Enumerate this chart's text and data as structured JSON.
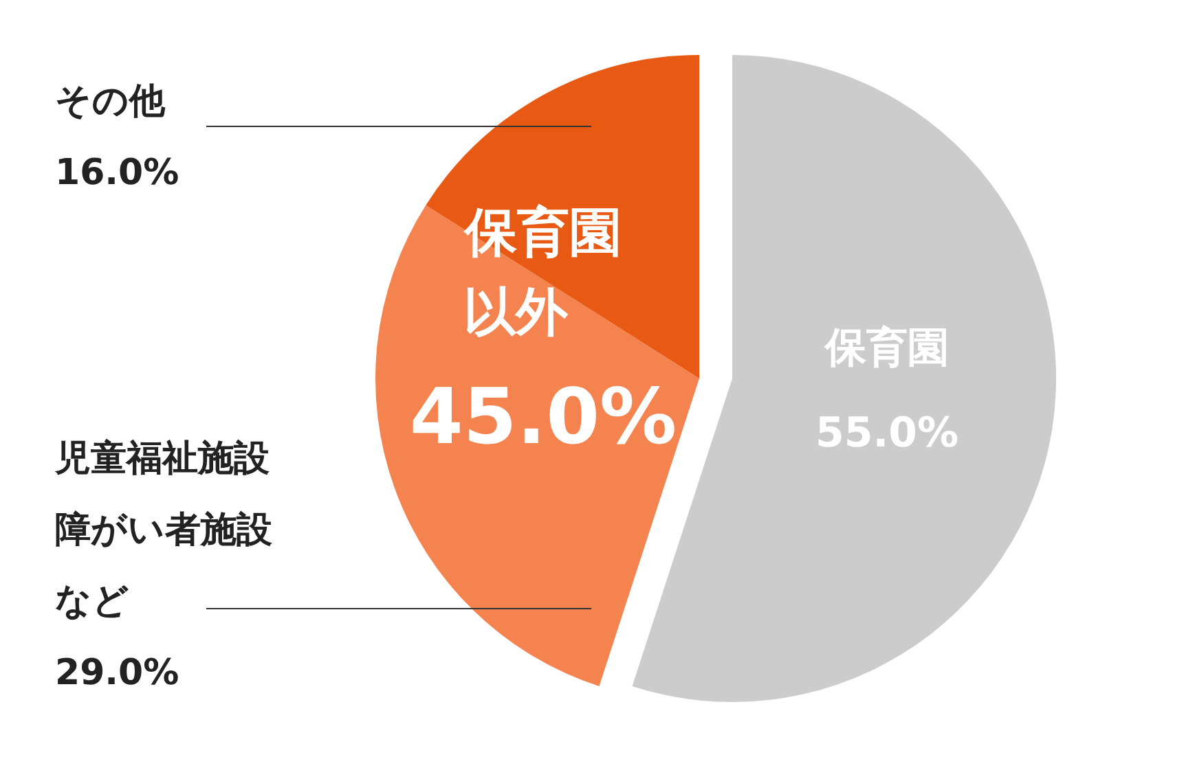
{
  "chart_data": {
    "type": "pie",
    "categories": [
      "保育園",
      "児童福祉施設障がい者施設など",
      "その他"
    ],
    "values": [
      55.0,
      29.0,
      16.0
    ],
    "colors": [
      "#cccccc",
      "#f5834f",
      "#e85a14"
    ],
    "value_labels": [
      "55.0%",
      "29.0%",
      "16.0%"
    ],
    "annotations": [
      "保育園以外",
      "45.0%"
    ],
    "legend": false
  }
}
